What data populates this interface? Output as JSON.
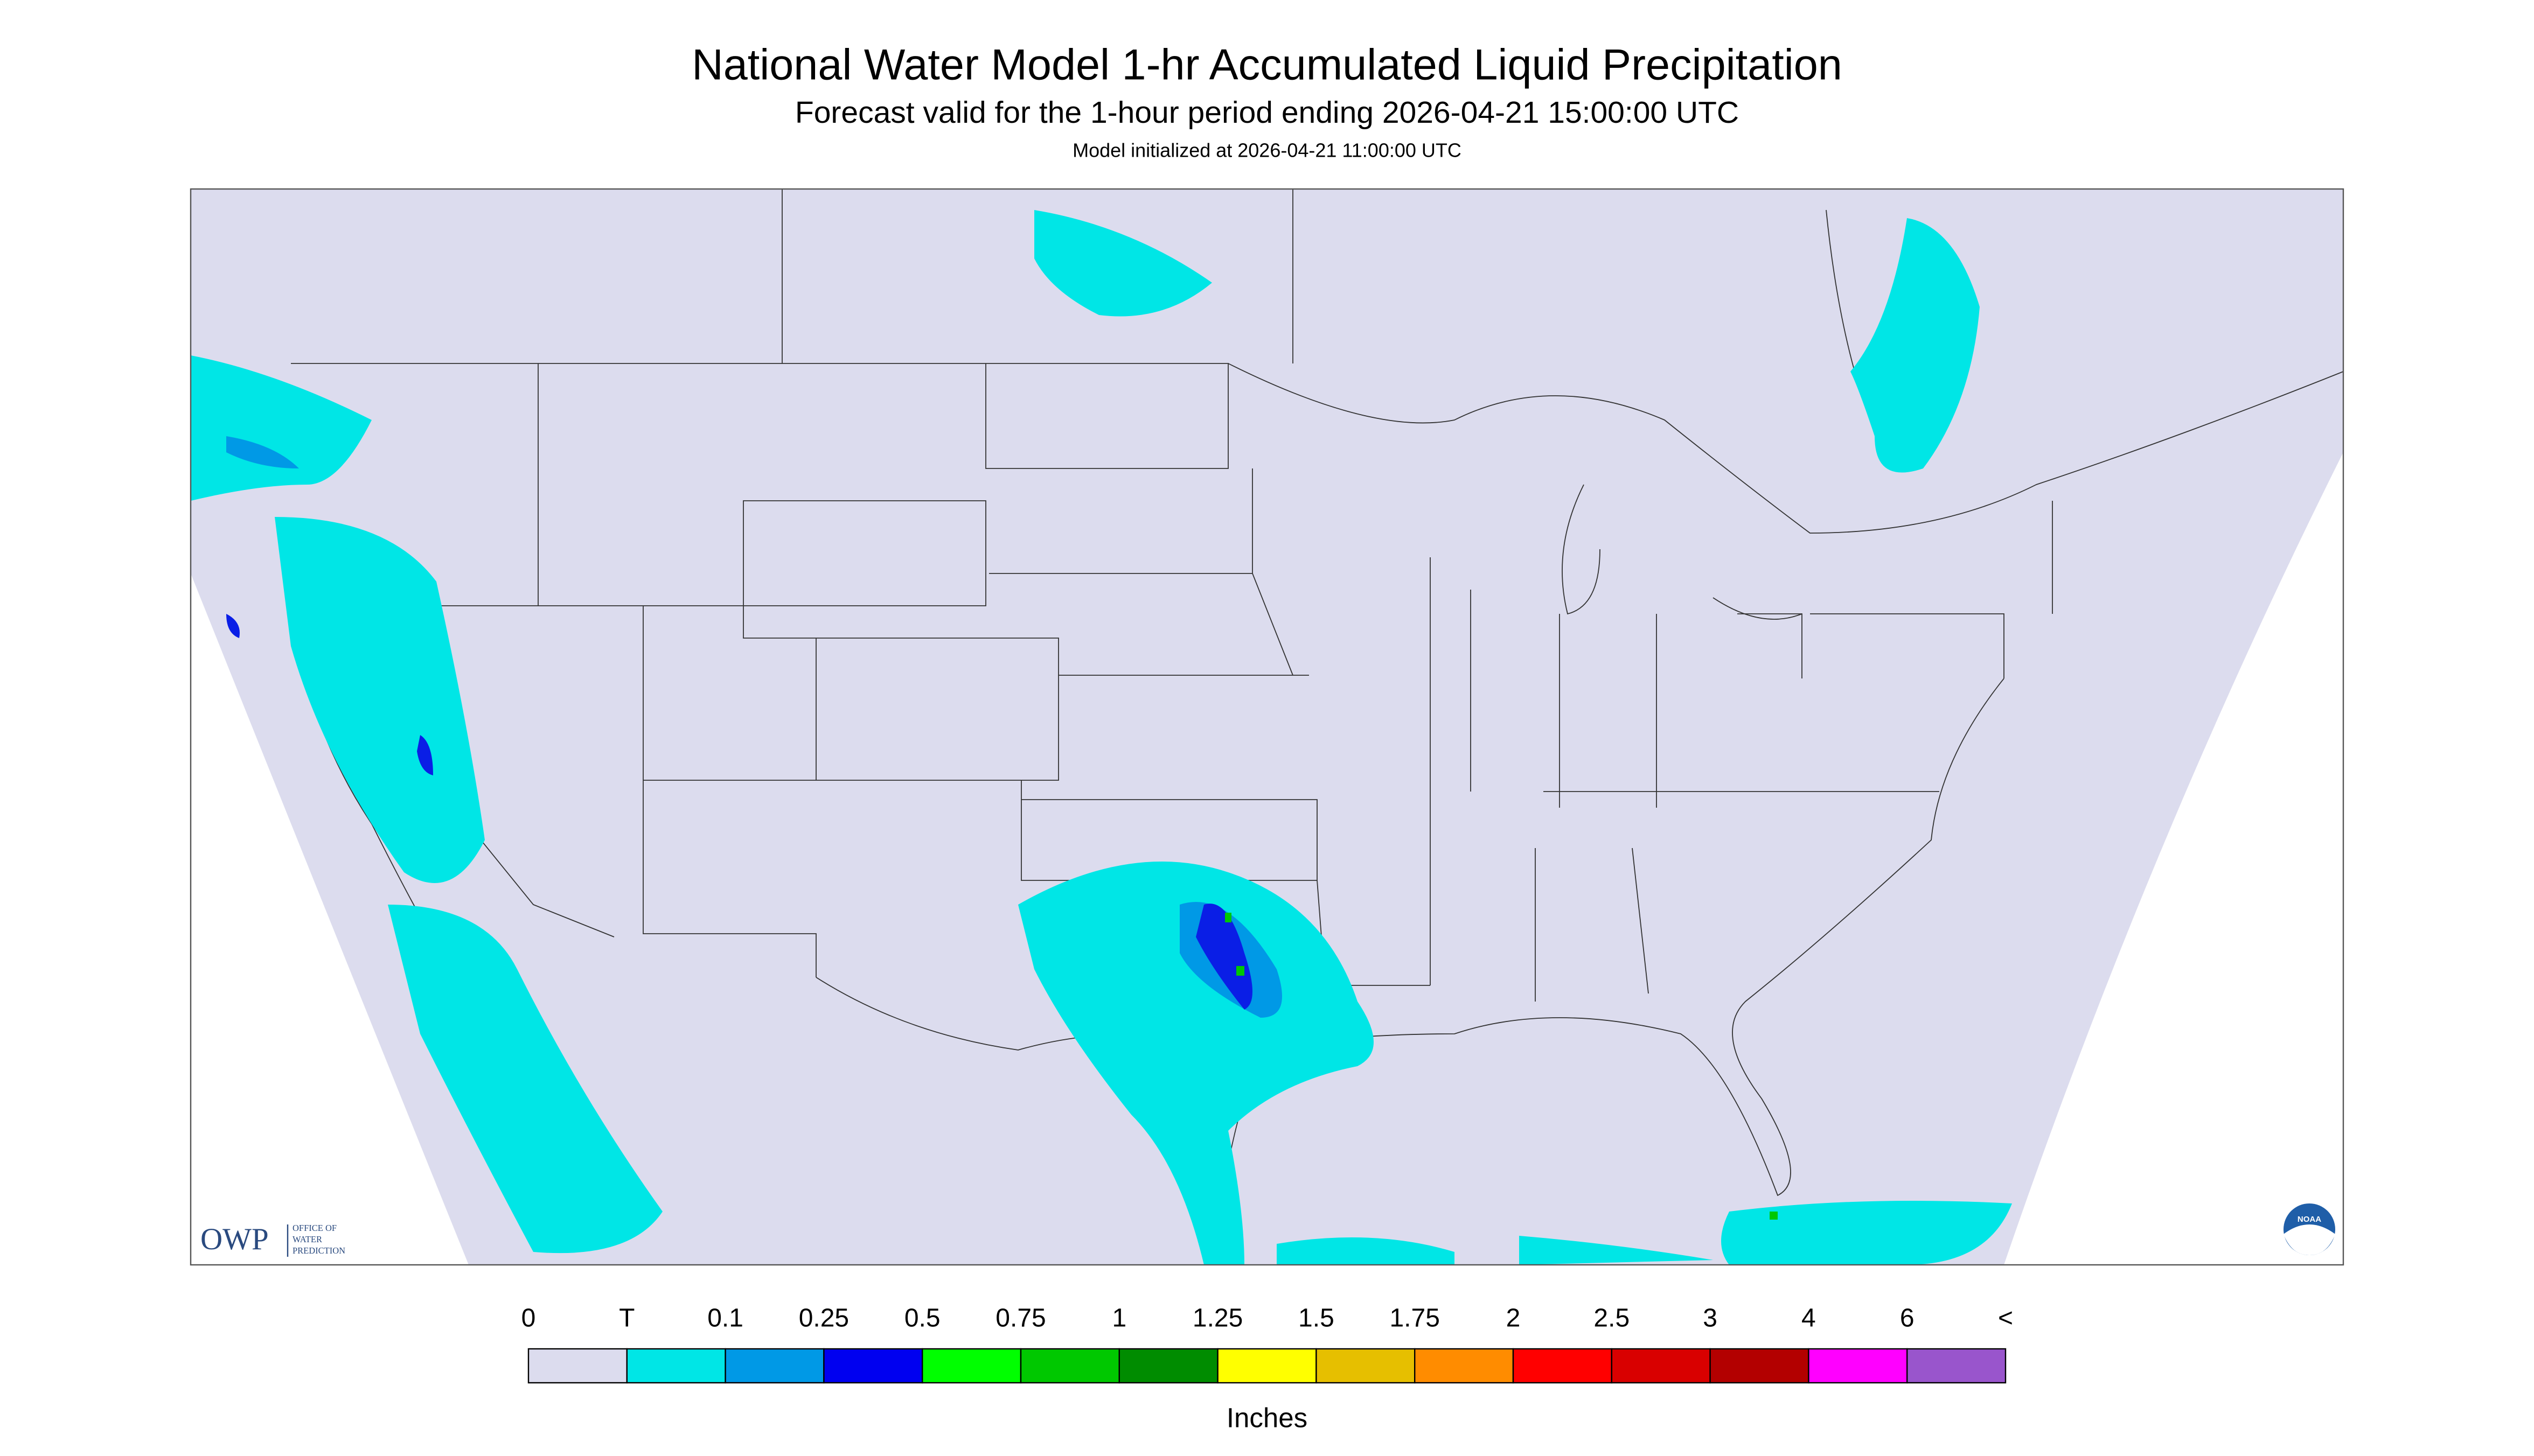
{
  "header": {
    "title": "National Water Model 1-hr Accumulated Liquid Precipitation",
    "subtitle": "Forecast valid for the 1-hour period ending 2026-04-21 15:00:00 UTC",
    "note": "Model initialized at 2026-04-21 11:00:00 UTC"
  },
  "logo": {
    "owp": "OWP",
    "office": [
      "OFFICE OF",
      "WATER",
      "PREDICTION"
    ],
    "noaa": "NOAA"
  },
  "legend": {
    "labels": [
      "0",
      "T",
      "0.1",
      "0.25",
      "0.5",
      "0.75",
      "1",
      "1.25",
      "1.5",
      "1.75",
      "2",
      "2.5",
      "3",
      "4",
      "6",
      "<"
    ],
    "colors": [
      "#dcdcee",
      "#00e6e6",
      "#0099e6",
      "#0000f0",
      "#00ff00",
      "#00c800",
      "#008c00",
      "#ffff00",
      "#e6bf00",
      "#ff8c00",
      "#ff0000",
      "#d90000",
      "#b30000",
      "#ff00ff",
      "#9955cc"
    ],
    "unit": "Inches"
  }
}
